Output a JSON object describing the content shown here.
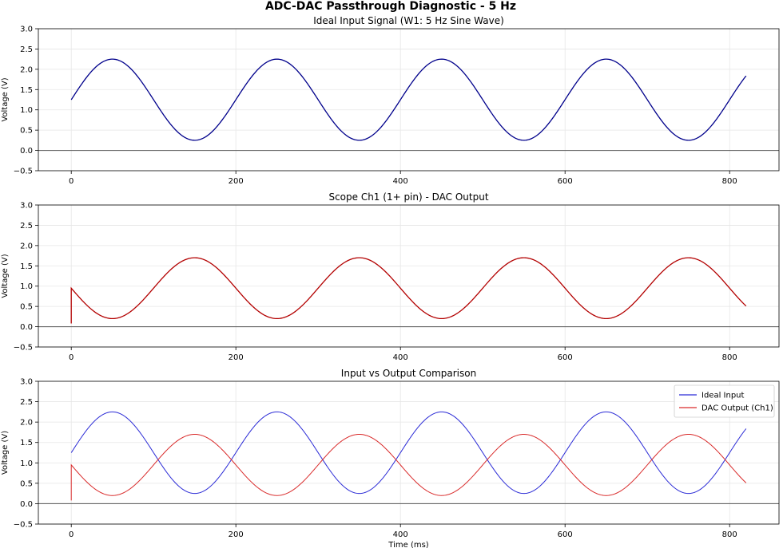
{
  "figure": {
    "suptitle": "ADC-DAC Passthrough Diagnostic - 5 Hz"
  },
  "chart_data": [
    {
      "type": "line",
      "title": "Ideal Input Signal (W1: 5 Hz Sine Wave)",
      "xlabel": "",
      "ylabel": "Voltage (V)",
      "xlim": [
        -40,
        860
      ],
      "ylim": [
        -0.5,
        3.0
      ],
      "xticks": [
        "0",
        "200",
        "400",
        "600",
        "800"
      ],
      "yticks": [
        "−0.5",
        "0.0",
        "0.5",
        "1.0",
        "1.5",
        "2.0",
        "2.5",
        "3.0"
      ],
      "grid": true,
      "zero_line": 0,
      "series": [
        {
          "kind": "sine",
          "color": "#00008b",
          "x_start": 0,
          "x_end": 820,
          "offset": 1.25,
          "amplitude": 1.0,
          "period_ms": 200,
          "phase_deg": 0
        }
      ]
    },
    {
      "type": "line",
      "title": "Scope Ch1 (1+ pin) - DAC Output",
      "xlabel": "",
      "ylabel": "Voltage (V)",
      "xlim": [
        -40,
        860
      ],
      "ylim": [
        -0.5,
        3.0
      ],
      "xticks": [
        "0",
        "200",
        "400",
        "600",
        "800"
      ],
      "yticks": [
        "−0.5",
        "0.0",
        "0.5",
        "1.0",
        "1.5",
        "2.0",
        "2.5",
        "3.0"
      ],
      "grid": true,
      "zero_line": 0,
      "series": [
        {
          "kind": "sine",
          "color": "#b30000",
          "x_start": 0,
          "x_end": 820,
          "offset": 0.95,
          "amplitude": 0.75,
          "period_ms": 200,
          "phase_deg": 180,
          "start_value": 0.08
        }
      ]
    },
    {
      "type": "line",
      "title": "Input vs Output Comparison",
      "xlabel": "Time (ms)",
      "ylabel": "Voltage (V)",
      "xlim": [
        -40,
        860
      ],
      "ylim": [
        -0.5,
        3.0
      ],
      "xticks": [
        "0",
        "200",
        "400",
        "600",
        "800"
      ],
      "yticks": [
        "−0.5",
        "0.0",
        "0.5",
        "1.0",
        "1.5",
        "2.0",
        "2.5",
        "3.0"
      ],
      "grid": true,
      "zero_line": 0,
      "legend": "top-right",
      "series": [
        {
          "name": "Ideal Input",
          "kind": "sine",
          "color": "#2b2bd6",
          "x_start": 0,
          "x_end": 820,
          "offset": 1.25,
          "amplitude": 1.0,
          "period_ms": 200,
          "phase_deg": 0
        },
        {
          "name": "DAC Output (Ch1)",
          "kind": "sine",
          "color": "#d92b2b",
          "x_start": 0,
          "x_end": 820,
          "offset": 0.95,
          "amplitude": 0.75,
          "period_ms": 200,
          "phase_deg": 180,
          "start_value": 0.08
        }
      ]
    }
  ]
}
